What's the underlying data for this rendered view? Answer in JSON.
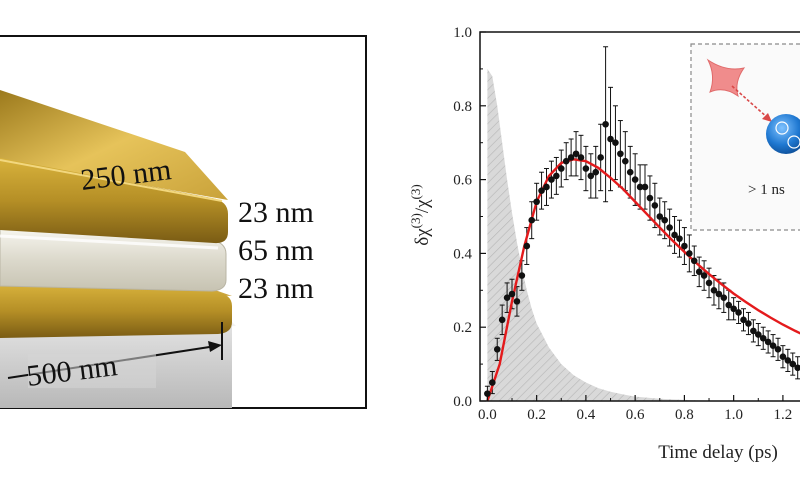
{
  "figure": {
    "illustration": {
      "labels": {
        "length": "250 nm",
        "top_gold": "23 nm",
        "dielectric": "65 nm",
        "bottom_gold": "23 nm",
        "width": "500 nm"
      },
      "colors": {
        "gold": "#b58f26",
        "gold_highlight": "#e6c35a",
        "gold_shadow": "#7a5c14",
        "dielectric": "#e6e4da"
      }
    },
    "inset": {
      "label": "> 1 ns",
      "icons": [
        "laser-pulse-icon",
        "excited-electron-icon"
      ]
    }
  },
  "chart_data": {
    "type": "scatter",
    "title": "",
    "xlabel": "Time delay (ps)",
    "ylabel_main": "δχ",
    "ylabel_sup1": "(3)",
    "ylabel_slash": "/χ",
    "ylabel_sup2": "(3)",
    "xlim": [
      -0.03,
      1.31
    ],
    "ylim": [
      0.0,
      1.0
    ],
    "x_ticks": [
      "0.0",
      "0.2",
      "0.4",
      "0.6",
      "0.8",
      "1.0",
      "1.2"
    ],
    "x_tick_values": [
      0.0,
      0.2,
      0.4,
      0.6,
      0.8,
      1.0,
      1.2
    ],
    "y_ticks": [
      "0.0",
      "0.2",
      "0.4",
      "0.6",
      "0.8",
      "1.0"
    ],
    "y_tick_values": [
      0.0,
      0.2,
      0.4,
      0.6,
      0.8,
      1.0
    ],
    "series": [
      {
        "name": "measured",
        "kind": "scatter-errorbar",
        "color": "#111111",
        "x": [
          0.0,
          0.02,
          0.04,
          0.06,
          0.08,
          0.1,
          0.12,
          0.14,
          0.16,
          0.18,
          0.2,
          0.22,
          0.24,
          0.26,
          0.28,
          0.3,
          0.32,
          0.34,
          0.36,
          0.38,
          0.4,
          0.42,
          0.44,
          0.46,
          0.48,
          0.5,
          0.52,
          0.54,
          0.56,
          0.58,
          0.6,
          0.62,
          0.64,
          0.66,
          0.68,
          0.7,
          0.72,
          0.74,
          0.76,
          0.78,
          0.8,
          0.82,
          0.84,
          0.86,
          0.88,
          0.9,
          0.92,
          0.94,
          0.96,
          0.98,
          1.0,
          1.02,
          1.04,
          1.06,
          1.08,
          1.1,
          1.12,
          1.14,
          1.16,
          1.18,
          1.2,
          1.22,
          1.24,
          1.26,
          1.28,
          1.3
        ],
        "y": [
          0.02,
          0.05,
          0.14,
          0.22,
          0.28,
          0.29,
          0.27,
          0.34,
          0.42,
          0.49,
          0.54,
          0.57,
          0.58,
          0.6,
          0.61,
          0.63,
          0.65,
          0.66,
          0.67,
          0.66,
          0.63,
          0.61,
          0.62,
          0.66,
          0.75,
          0.71,
          0.7,
          0.67,
          0.65,
          0.62,
          0.6,
          0.58,
          0.58,
          0.55,
          0.53,
          0.5,
          0.49,
          0.47,
          0.45,
          0.44,
          0.42,
          0.4,
          0.38,
          0.35,
          0.34,
          0.32,
          0.3,
          0.29,
          0.28,
          0.26,
          0.25,
          0.24,
          0.22,
          0.21,
          0.19,
          0.18,
          0.17,
          0.16,
          0.15,
          0.14,
          0.12,
          0.11,
          0.1,
          0.09,
          0.09,
          0.08
        ],
        "yerr": [
          0.02,
          0.03,
          0.03,
          0.04,
          0.04,
          0.04,
          0.04,
          0.04,
          0.05,
          0.05,
          0.05,
          0.05,
          0.05,
          0.05,
          0.05,
          0.05,
          0.05,
          0.05,
          0.06,
          0.06,
          0.06,
          0.06,
          0.07,
          0.09,
          0.21,
          0.14,
          0.1,
          0.09,
          0.08,
          0.07,
          0.07,
          0.06,
          0.06,
          0.06,
          0.06,
          0.05,
          0.05,
          0.05,
          0.05,
          0.05,
          0.05,
          0.05,
          0.04,
          0.04,
          0.04,
          0.04,
          0.04,
          0.04,
          0.04,
          0.04,
          0.03,
          0.03,
          0.03,
          0.03,
          0.03,
          0.03,
          0.03,
          0.03,
          0.03,
          0.03,
          0.03,
          0.03,
          0.03,
          0.03,
          0.03,
          0.03
        ]
      },
      {
        "name": "fit",
        "kind": "line",
        "color": "#e41a1c",
        "x": [
          0.0,
          0.05,
          0.1,
          0.15,
          0.2,
          0.25,
          0.3,
          0.35,
          0.4,
          0.45,
          0.5,
          0.55,
          0.6,
          0.65,
          0.7,
          0.75,
          0.8,
          0.85,
          0.9,
          0.95,
          1.0,
          1.05,
          1.1,
          1.15,
          1.2,
          1.25,
          1.3
        ],
        "y": [
          0.0,
          0.1,
          0.27,
          0.42,
          0.54,
          0.61,
          0.645,
          0.655,
          0.65,
          0.632,
          0.605,
          0.575,
          0.54,
          0.505,
          0.47,
          0.436,
          0.404,
          0.373,
          0.344,
          0.317,
          0.291,
          0.268,
          0.246,
          0.226,
          0.207,
          0.19,
          0.174
        ]
      },
      {
        "name": "pump",
        "kind": "area",
        "color": "#d3d3d3",
        "x": [
          0.0,
          0.02,
          0.04,
          0.06,
          0.08,
          0.1,
          0.12,
          0.14,
          0.16,
          0.18,
          0.2,
          0.25,
          0.3,
          0.35,
          0.4,
          0.45,
          0.5,
          0.55,
          0.6,
          0.7,
          0.8,
          0.9,
          1.0
        ],
        "y": [
          0.9,
          0.88,
          0.8,
          0.7,
          0.6,
          0.51,
          0.43,
          0.36,
          0.3,
          0.25,
          0.21,
          0.145,
          0.1,
          0.07,
          0.05,
          0.035,
          0.025,
          0.018,
          0.012,
          0.006,
          0.003,
          0.001,
          0.0
        ]
      }
    ]
  }
}
